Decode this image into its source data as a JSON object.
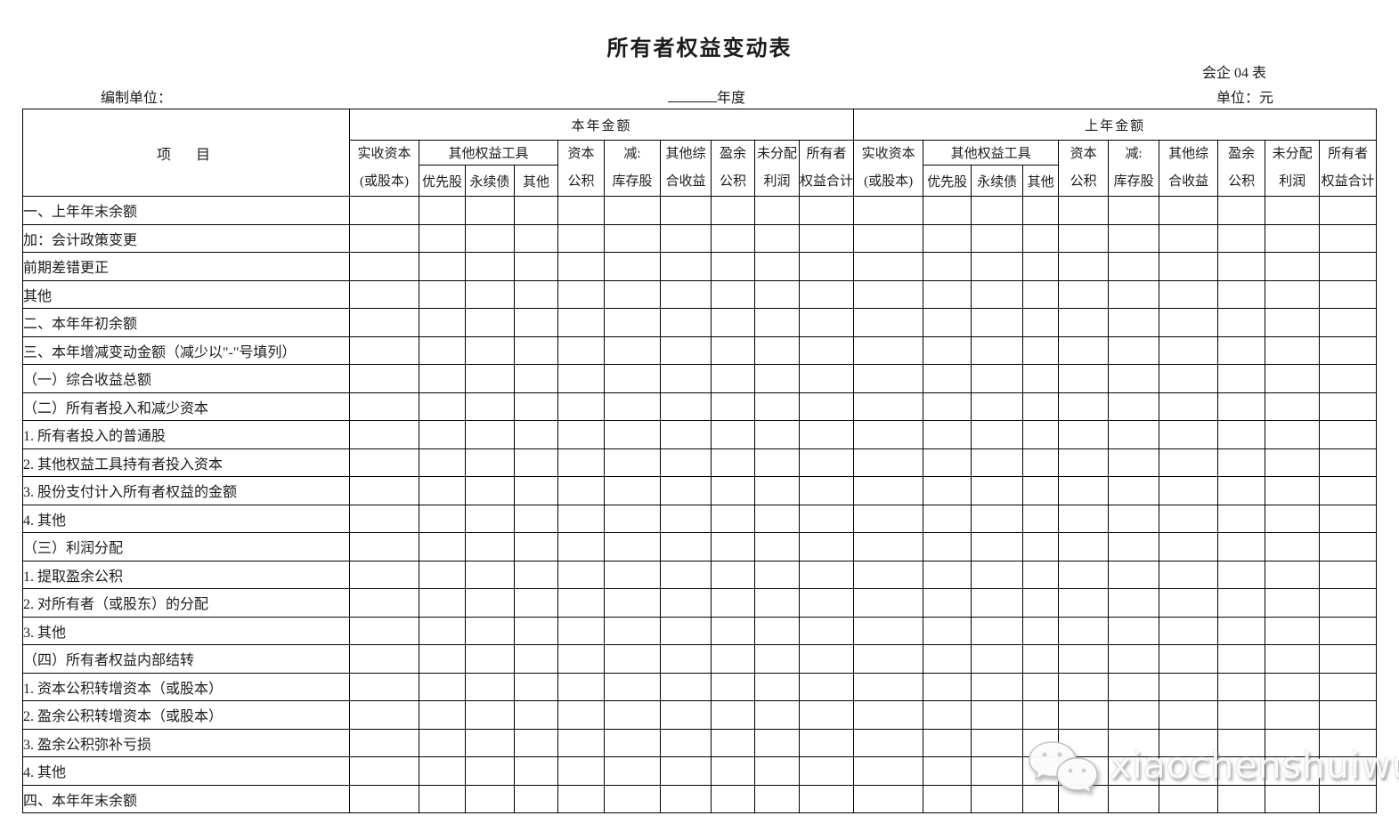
{
  "title": "所有者权益变动表",
  "form_code": "会企 04 表",
  "prepared_by_label": "编制单位：",
  "year_label": "年度",
  "unit_label": "单位：元",
  "watermark": {
    "text": "xiaochenshuiwu",
    "icon": "wechat-icon"
  },
  "table": {
    "item_header": "项　目",
    "groups": [
      {
        "label": "本年金额"
      },
      {
        "label": "上年金额"
      }
    ],
    "cols": {
      "paid_in_capital": "实收资本\n(或股本)",
      "other_equity_tools": "其他权益工具",
      "sub": [
        "优先股",
        "永续债",
        "其他"
      ],
      "capital_reserve": "资本\n公积",
      "less_treasury": "减:\n库存股",
      "other_comprehensive_income": "其他综\n合收益",
      "surplus_reserve": "盈余\n公积",
      "undistributed_profit": "未分配\n利润",
      "owners_equity_total": "所有者\n权益合计"
    },
    "rows": [
      {
        "label": "一、上年年末余额",
        "indent": 0
      },
      {
        "label": "加：会计政策变更",
        "indent": 1
      },
      {
        "label": "前期差错更正",
        "indent": 2
      },
      {
        "label": "其他",
        "indent": 2
      },
      {
        "label": "二、本年年初余额",
        "indent": 0
      },
      {
        "label": "三、本年增减变动金额（减少以\"-\"号填列）",
        "indent": 0
      },
      {
        "label": "（一）综合收益总额",
        "indent": 0
      },
      {
        "label": "（二）所有者投入和减少资本",
        "indent": 0
      },
      {
        "label": "1. 所有者投入的普通股",
        "indent": 3
      },
      {
        "label": "2. 其他权益工具持有者投入资本",
        "indent": 3
      },
      {
        "label": "3. 股份支付计入所有者权益的金额",
        "indent": 3
      },
      {
        "label": "4. 其他",
        "indent": 3
      },
      {
        "label": "（三）利润分配",
        "indent": 0
      },
      {
        "label": "1. 提取盈余公积",
        "indent": 3
      },
      {
        "label": "2. 对所有者（或股东）的分配",
        "indent": 3
      },
      {
        "label": "3. 其他",
        "indent": 3
      },
      {
        "label": "（四）所有者权益内部结转",
        "indent": 0
      },
      {
        "label": "1. 资本公积转增资本（或股本）",
        "indent": 3
      },
      {
        "label": "2. 盈余公积转增资本（或股本）",
        "indent": 3
      },
      {
        "label": "3. 盈余公积弥补亏损",
        "indent": 3
      },
      {
        "label": "4. 其他",
        "indent": 3
      },
      {
        "label": "四、本年年末余额",
        "indent": 0
      }
    ]
  }
}
